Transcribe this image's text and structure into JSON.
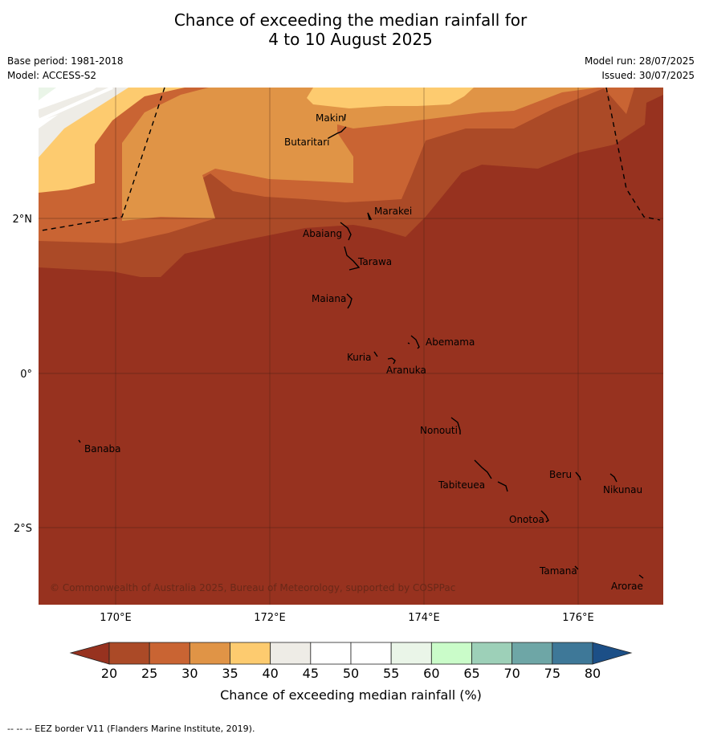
{
  "title": {
    "line1": "Chance of exceeding the median rainfall for",
    "line2": "4 to 10 August 2025"
  },
  "meta": {
    "base_period": "Base period: 1981-2018",
    "model": "Model: ACCESS-S2",
    "model_run": "Model run: 28/07/2025",
    "issued": "Issued: 30/07/2025"
  },
  "map": {
    "lat_labels": [
      "2°N",
      "0°",
      "2°S"
    ],
    "lon_labels": [
      "170°E",
      "172°E",
      "174°E",
      "176°E"
    ],
    "places": [
      "Makin",
      "Butaritari",
      "Marakei",
      "Abaiang",
      "Tarawa",
      "Maiana",
      "Abemama",
      "Kuria",
      "Aranuka",
      "Nonouti",
      "Banaba",
      "Beru",
      "Tabiteuea",
      "Nikunau",
      "Onotoa",
      "Tamana",
      "Arorae"
    ],
    "copyright": "© Commonwealth of Australia 2025, Bureau of Meteorology, supported by COSPPac"
  },
  "colorbar": {
    "ticks": [
      "20",
      "25",
      "30",
      "35",
      "40",
      "45",
      "50",
      "55",
      "60",
      "65",
      "70",
      "75",
      "80"
    ],
    "colors": [
      "#ab4a27",
      "#c96433",
      "#e09446",
      "#fdcb6f",
      "#eeece6",
      "#ffffff",
      "#ffffff",
      "#eaf5e8",
      "#cafcc9",
      "#9dd0b8",
      "#6ea6a6",
      "#3e7898"
    ],
    "low_extend_color": "#97321f",
    "high_extend_color": "#1c4f87",
    "label": "Chance of exceeding median rainfall (%)"
  },
  "footer": "--  --  -- EEZ border V11 (Flanders Marine Institute, 2019)."
}
